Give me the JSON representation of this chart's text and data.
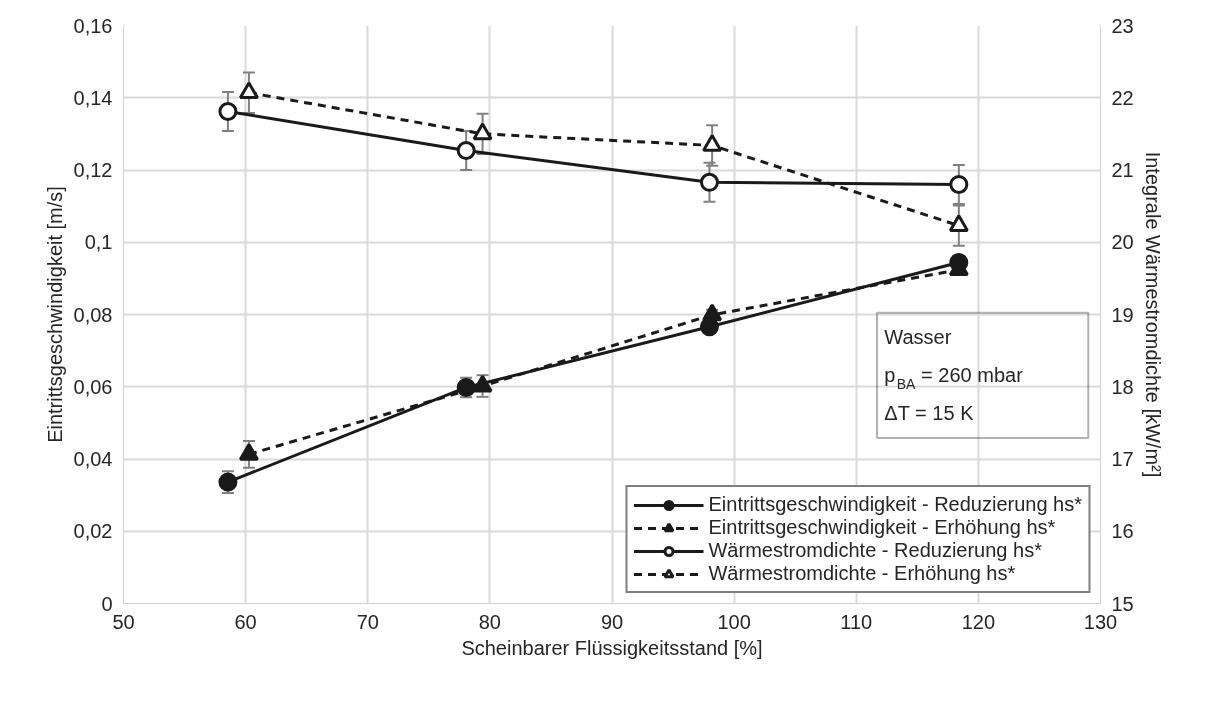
{
  "chart_data": {
    "type": "line",
    "xlabel": "Scheinbarer Flüssigkeitsstand [%]",
    "ylabel": "Eintrittsgeschwindigkeit [m/s]",
    "y2label": "Integrale Wärmestromdichte [kW/m²]",
    "xlim": [
      50,
      130
    ],
    "xticks": [
      50,
      60,
      70,
      80,
      90,
      100,
      110,
      120,
      130
    ],
    "ylim": [
      0,
      0.16
    ],
    "yticks": [
      {
        "value": 0,
        "label": "0"
      },
      {
        "value": 0.02,
        "label": "0,02"
      },
      {
        "value": 0.04,
        "label": "0,04"
      },
      {
        "value": 0.06,
        "label": "0,06"
      },
      {
        "value": 0.08,
        "label": "0,08"
      },
      {
        "value": 0.1,
        "label": "0,1"
      },
      {
        "value": 0.12,
        "label": "0,12"
      },
      {
        "value": 0.14,
        "label": "0,14"
      },
      {
        "value": 0.16,
        "label": "0,16"
      }
    ],
    "y2lim": [
      15,
      23
    ],
    "y2ticks": [
      15,
      16,
      17,
      18,
      19,
      20,
      21,
      22,
      23
    ],
    "grid": true,
    "legend": "bottom right",
    "annotations": [
      "Wasser",
      "p$_{BA}$ = 260 mbar",
      "ΔT = 15 K"
    ],
    "series": [
      {
        "name": "Eintrittsgeschwindigkeit - Reduzierung hs*",
        "color": "#1a1a1a",
        "marker": "circle",
        "line_style": "solid",
        "x": [
          58.55,
          78.06,
          97.98,
          118.4
        ],
        "values": [
          0.0336,
          0.0598,
          0.0766,
          0.0944
        ],
        "errors": [
          0.003,
          0.0027,
          null,
          null
        ]
      },
      {
        "name": "Eintrittsgeschwindigkeit - Erhöhung hs*",
        "color": "#1a1a1a",
        "marker": "triangle",
        "line_style": "dashed",
        "x": [
          60.27,
          79.4,
          98.2,
          118.4
        ],
        "values": [
          0.0413,
          0.0602,
          0.0799,
          0.0924
        ],
        "errors": [
          0.0037,
          0.003,
          0.0014,
          null
        ]
      },
      {
        "name": "Wärmestromdichte - Reduzierung hs*",
        "color": "#1a1a1a",
        "marker": "circle",
        "line_style": "solid",
        "axis": "y2",
        "x": [
          58.55,
          78.06,
          97.98,
          118.4
        ],
        "values": [
          21.81,
          21.27,
          20.83,
          20.8
        ],
        "errors": [
          0.27,
          0.27,
          0.27,
          0.27
        ]
      },
      {
        "name": "Wärmestromdichte - Erhöhung hs*",
        "color": "#1a1a1a",
        "marker": "triangle",
        "line_style": "dashed",
        "axis": "y2",
        "x": [
          60.27,
          79.4,
          98.2,
          118.4
        ],
        "values": [
          22.07,
          21.5,
          21.34,
          20.23
        ],
        "errors": [
          0.28,
          0.28,
          0.28,
          0.28
        ]
      }
    ]
  }
}
